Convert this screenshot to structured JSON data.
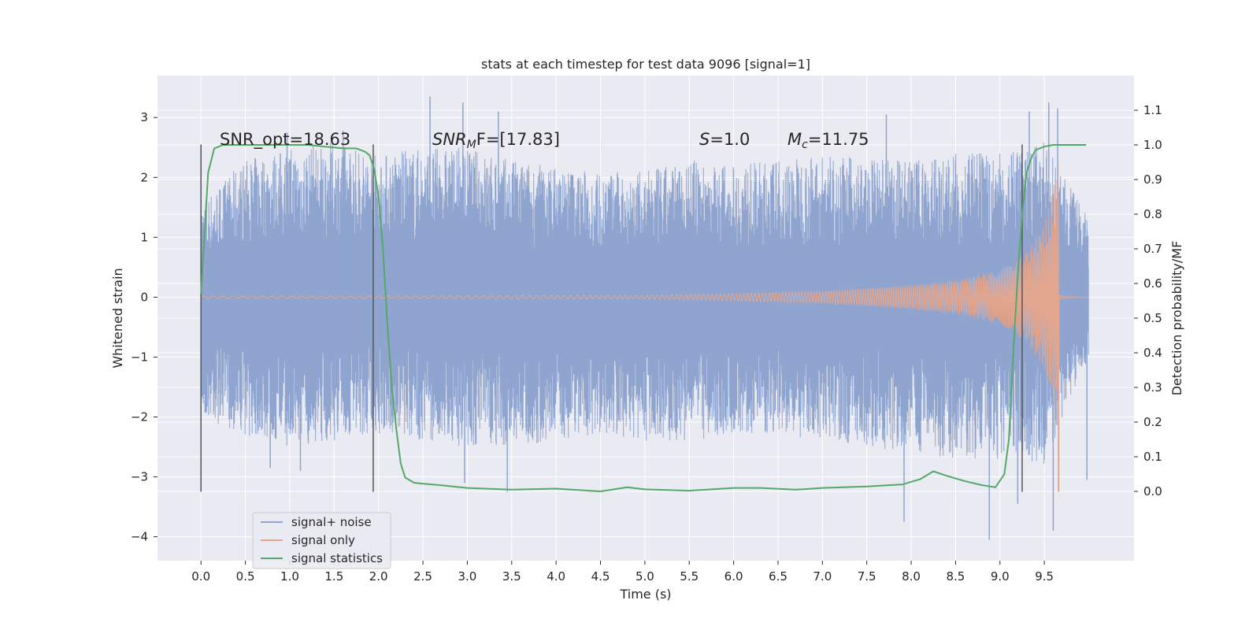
{
  "chart_data": {
    "type": "line",
    "title": "stats at each timestep for test data 9096 [signal=1]",
    "xlabel": "Time (s)",
    "ylabel_left": "Whitened strain",
    "ylabel_right": "Detection probability/MF",
    "xlim": [
      -0.49,
      10.51
    ],
    "ylim_left": [
      -4.4,
      3.7
    ],
    "ylim_right": [
      -0.2,
      1.2
    ],
    "xticks": [
      0.0,
      0.5,
      1.0,
      1.5,
      2.0,
      2.5,
      3.0,
      3.5,
      4.0,
      4.5,
      5.0,
      5.5,
      6.0,
      6.5,
      7.0,
      7.5,
      8.0,
      8.5,
      9.0,
      9.5
    ],
    "xtick_labels": [
      "0.0",
      "0.5",
      "1.0",
      "1.5",
      "2.0",
      "2.5",
      "3.0",
      "3.5",
      "4.0",
      "4.5",
      "5.0",
      "5.5",
      "6.0",
      "6.5",
      "7.0",
      "7.5",
      "8.0",
      "8.5",
      "9.0",
      "9.5"
    ],
    "yticks_left": [
      3,
      2,
      1,
      0,
      -1,
      -2,
      -3,
      -4
    ],
    "ytick_labels_left": [
      "3",
      "2",
      "1",
      "0",
      "−1",
      "−2",
      "−3",
      "−4"
    ],
    "yticks_right": [
      1.1,
      1.0,
      0.9,
      0.8,
      0.7,
      0.6,
      0.5,
      0.4,
      0.3,
      0.2,
      0.1,
      0.0
    ],
    "ytick_labels_right": [
      "1.1",
      "1.0",
      "0.9",
      "0.8",
      "0.7",
      "0.6",
      "0.5",
      "0.4",
      "0.3",
      "0.2",
      "0.1",
      "0.0"
    ],
    "grid": true,
    "legend_placement": "lower-left",
    "annotations": {
      "snr_opt": "SNR_opt=18.63",
      "snr_mf_name": "SNR",
      "snr_mf_sub": "M",
      "snr_mf_rest": "F=[17.83]",
      "s_name": "S",
      "s_rest": "=1.0",
      "mc_name": "M",
      "mc_sub": "c",
      "mc_rest": "=11.75"
    },
    "vertical_markers": [
      {
        "x": 0.0,
        "y_range": [
          -3.25,
          2.55
        ]
      },
      {
        "x": 1.94,
        "y_range": [
          -3.25,
          2.55
        ]
      },
      {
        "x": 9.25,
        "y_range": [
          -3.25,
          2.55
        ]
      }
    ],
    "series": [
      {
        "name": "signal+ noise",
        "color": "#8fa5cf",
        "x_range": [
          0.0,
          10.0
        ],
        "envelope_upper": [
          [
            0.0,
            1.6
          ],
          [
            0.5,
            2.3
          ],
          [
            1.0,
            2.5
          ],
          [
            1.5,
            2.6
          ],
          [
            2.0,
            2.4
          ],
          [
            2.5,
            2.5
          ],
          [
            3.0,
            2.5
          ],
          [
            3.5,
            2.3
          ],
          [
            4.0,
            2.2
          ],
          [
            4.5,
            2.1
          ],
          [
            5.0,
            2.1
          ],
          [
            5.5,
            2.3
          ],
          [
            6.0,
            2.2
          ],
          [
            6.5,
            2.3
          ],
          [
            7.0,
            2.4
          ],
          [
            7.5,
            2.3
          ],
          [
            8.0,
            2.3
          ],
          [
            8.5,
            2.4
          ],
          [
            9.0,
            2.4
          ],
          [
            9.5,
            2.6
          ],
          [
            10.0,
            1.3
          ]
        ],
        "envelope_lower": [
          [
            0.0,
            -2.0
          ],
          [
            0.5,
            -2.3
          ],
          [
            1.0,
            -2.5
          ],
          [
            1.5,
            -2.4
          ],
          [
            2.0,
            -2.3
          ],
          [
            2.5,
            -2.4
          ],
          [
            3.0,
            -2.5
          ],
          [
            3.5,
            -2.5
          ],
          [
            4.0,
            -2.4
          ],
          [
            4.5,
            -2.3
          ],
          [
            5.0,
            -2.4
          ],
          [
            5.5,
            -2.4
          ],
          [
            6.0,
            -2.3
          ],
          [
            6.5,
            -2.3
          ],
          [
            7.0,
            -2.4
          ],
          [
            7.5,
            -2.5
          ],
          [
            8.0,
            -2.6
          ],
          [
            8.5,
            -2.7
          ],
          [
            9.0,
            -2.7
          ],
          [
            9.5,
            -2.8
          ],
          [
            10.0,
            -1.0
          ]
        ],
        "peaks": [
          [
            0.97,
            2.75
          ],
          [
            1.6,
            2.78
          ],
          [
            2.58,
            3.35
          ],
          [
            2.95,
            3.25
          ],
          [
            3.35,
            3.1
          ],
          [
            7.72,
            3.05
          ],
          [
            9.33,
            3.1
          ],
          [
            9.55,
            3.25
          ],
          [
            9.65,
            3.15
          ]
        ],
        "troughs": [
          [
            0.78,
            -2.85
          ],
          [
            1.12,
            -2.9
          ],
          [
            2.97,
            -3.1
          ],
          [
            3.45,
            -3.25
          ],
          [
            7.92,
            -3.75
          ],
          [
            8.88,
            -4.05
          ],
          [
            9.2,
            -3.45
          ],
          [
            9.6,
            -3.9
          ],
          [
            9.98,
            -3.05
          ]
        ]
      },
      {
        "name": "signal only",
        "color": "#e8a58b",
        "x_range": [
          0.0,
          10.0
        ],
        "chirp_end": 9.66,
        "chirp_envelope": [
          [
            0.0,
            0.02
          ],
          [
            2.0,
            0.02
          ],
          [
            5.0,
            0.03
          ],
          [
            6.0,
            0.06
          ],
          [
            7.0,
            0.1
          ],
          [
            8.0,
            0.2
          ],
          [
            8.5,
            0.28
          ],
          [
            9.0,
            0.45
          ],
          [
            9.3,
            0.75
          ],
          [
            9.5,
            1.2
          ],
          [
            9.6,
            1.8
          ],
          [
            9.66,
            2.4
          ]
        ],
        "chirp_min_trough": -3.25,
        "ringdown_amplitude": 0.05
      },
      {
        "name": "signal statistics",
        "color": "#55a868",
        "axis": "right",
        "x": [
          0.0,
          0.08,
          0.15,
          0.25,
          0.4,
          0.6,
          0.8,
          1.0,
          1.2,
          1.4,
          1.6,
          1.75,
          1.85,
          1.9,
          1.95,
          2.0,
          2.05,
          2.1,
          2.15,
          2.2,
          2.25,
          2.3,
          2.4,
          2.5,
          2.7,
          3.0,
          3.5,
          4.0,
          4.5,
          4.8,
          5.0,
          5.5,
          6.0,
          6.3,
          6.7,
          7.0,
          7.5,
          7.9,
          8.1,
          8.25,
          8.4,
          8.6,
          8.8,
          8.95,
          9.05,
          9.1,
          9.15,
          9.2,
          9.25,
          9.3,
          9.35,
          9.4,
          9.5,
          9.6,
          9.8,
          9.97
        ],
        "values": [
          0.57,
          0.92,
          0.99,
          1.0,
          1.0,
          1.0,
          1.0,
          1.0,
          1.0,
          0.995,
          0.99,
          0.99,
          0.98,
          0.97,
          0.93,
          0.85,
          0.7,
          0.48,
          0.3,
          0.18,
          0.08,
          0.04,
          0.025,
          0.022,
          0.018,
          0.01,
          0.005,
          0.008,
          0.0,
          0.012,
          0.006,
          0.002,
          0.01,
          0.01,
          0.005,
          0.01,
          0.014,
          0.02,
          0.035,
          0.058,
          0.045,
          0.03,
          0.018,
          0.012,
          0.05,
          0.15,
          0.4,
          0.62,
          0.8,
          0.92,
          0.96,
          0.985,
          0.995,
          1.0,
          1.0,
          1.0
        ]
      }
    ]
  }
}
